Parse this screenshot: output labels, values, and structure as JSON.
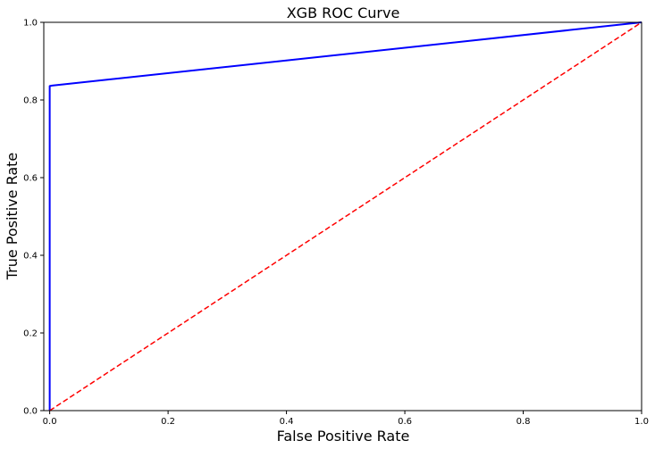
{
  "chart_data": {
    "type": "line",
    "title": "XGB ROC Curve",
    "xlabel": "False Positive Rate",
    "ylabel": "True Positive Rate",
    "xlim": [
      -0.01,
      1.0
    ],
    "ylim": [
      0.0,
      1.0
    ],
    "x_ticks": [
      0.0,
      0.2,
      0.4,
      0.6,
      0.8,
      1.0
    ],
    "y_ticks": [
      0.0,
      0.2,
      0.4,
      0.6,
      0.8,
      1.0
    ],
    "x_tick_labels": [
      "0.0",
      "0.2",
      "0.4",
      "0.6",
      "0.8",
      "1.0"
    ],
    "y_tick_labels": [
      "0.0",
      "0.2",
      "0.4",
      "0.6",
      "0.8",
      "1.0"
    ],
    "grid": false,
    "series": [
      {
        "color": "#0000ff",
        "style": "solid",
        "x": [
          0.0,
          0.0,
          0.004,
          1.0
        ],
        "y": [
          0.0,
          0.836,
          0.837,
          1.0
        ]
      },
      {
        "color": "#ff0000",
        "style": "dashed",
        "x": [
          0.0,
          1.0
        ],
        "y": [
          0.0,
          1.0
        ]
      }
    ]
  }
}
